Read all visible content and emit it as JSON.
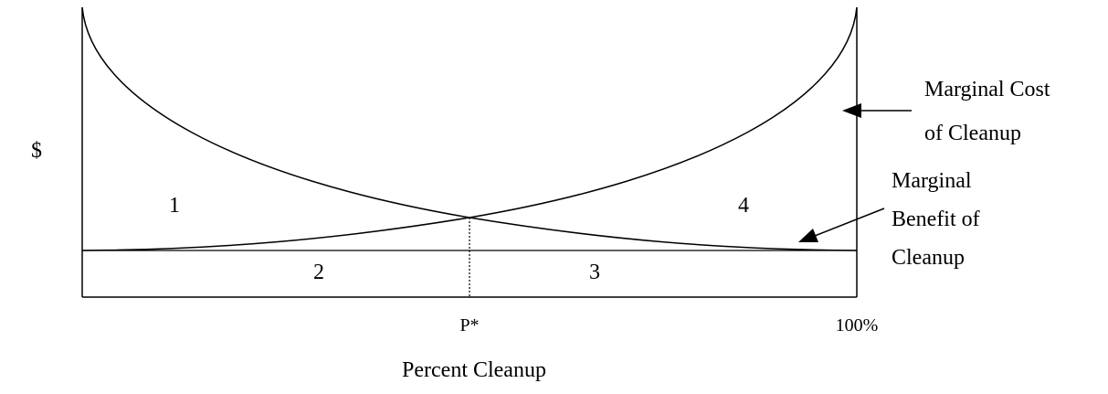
{
  "diagram": {
    "y_axis_label": "$",
    "x_axis_label": "Percent Cleanup",
    "x_ticks": {
      "equilibrium": "P*",
      "max": "100%"
    },
    "curves": {
      "marginal_cost": {
        "label_line1": "Marginal Cost",
        "label_line2": "of Cleanup"
      },
      "marginal_benefit": {
        "label_line1": "Marginal",
        "label_line2": "Benefit of",
        "label_line3": "Cleanup"
      }
    },
    "regions": [
      "1",
      "2",
      "3",
      "4"
    ],
    "colors": {
      "stroke": "#000000",
      "background": "#ffffff"
    }
  }
}
